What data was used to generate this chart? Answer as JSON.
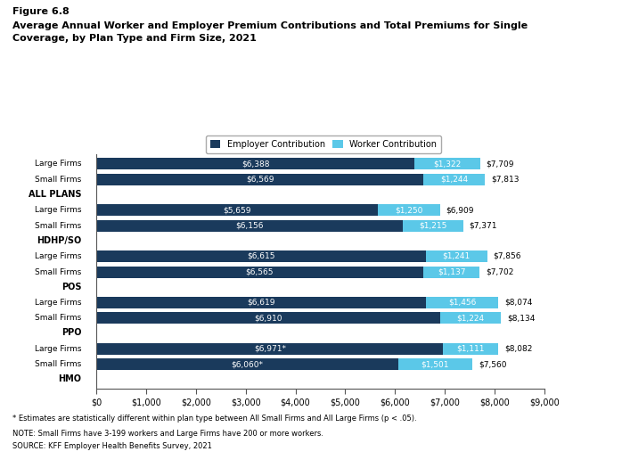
{
  "title_line1": "Figure 6.8",
  "title_line2": "Average Annual Worker and Employer Premium Contributions and Total Premiums for Single\nCoverage, by Plan Type and Firm Size, 2021",
  "employer_color": "#1a3a5c",
  "worker_color": "#5bc8e8",
  "rows": [
    {
      "label": "HMO",
      "employer": null,
      "worker": null,
      "emp_label": "",
      "wk_label": "",
      "total_label": "",
      "is_header": true
    },
    {
      "label": "Small Firms",
      "employer": 6060,
      "worker": 1501,
      "emp_label": "$6,060*",
      "wk_label": "$1,501",
      "total_label": "$7,560",
      "is_header": false
    },
    {
      "label": "Large Firms",
      "employer": 6971,
      "worker": 1111,
      "emp_label": "$6,971*",
      "wk_label": "$1,111",
      "total_label": "$8,082",
      "is_header": false
    },
    {
      "label": "PPO",
      "employer": null,
      "worker": null,
      "emp_label": "",
      "wk_label": "",
      "total_label": "",
      "is_header": true
    },
    {
      "label": "Small Firms",
      "employer": 6910,
      "worker": 1224,
      "emp_label": "$6,910",
      "wk_label": "$1,224",
      "total_label": "$8,134",
      "is_header": false
    },
    {
      "label": "Large Firms",
      "employer": 6619,
      "worker": 1456,
      "emp_label": "$6,619",
      "wk_label": "$1,456",
      "total_label": "$8,074",
      "is_header": false
    },
    {
      "label": "POS",
      "employer": null,
      "worker": null,
      "emp_label": "",
      "wk_label": "",
      "total_label": "",
      "is_header": true
    },
    {
      "label": "Small Firms",
      "employer": 6565,
      "worker": 1137,
      "emp_label": "$6,565",
      "wk_label": "$1,137",
      "total_label": "$7,702",
      "is_header": false
    },
    {
      "label": "Large Firms",
      "employer": 6615,
      "worker": 1241,
      "emp_label": "$6,615",
      "wk_label": "$1,241",
      "total_label": "$7,856",
      "is_header": false
    },
    {
      "label": "HDHP/SO",
      "employer": null,
      "worker": null,
      "emp_label": "",
      "wk_label": "",
      "total_label": "",
      "is_header": true
    },
    {
      "label": "Small Firms",
      "employer": 6156,
      "worker": 1215,
      "emp_label": "$6,156",
      "wk_label": "$1,215",
      "total_label": "$7,371",
      "is_header": false
    },
    {
      "label": "Large Firms",
      "employer": 5659,
      "worker": 1250,
      "emp_label": "$5,659",
      "wk_label": "$1,250",
      "total_label": "$6,909",
      "is_header": false
    },
    {
      "label": "ALL PLANS",
      "employer": null,
      "worker": null,
      "emp_label": "",
      "wk_label": "",
      "total_label": "",
      "is_header": true
    },
    {
      "label": "Small Firms",
      "employer": 6569,
      "worker": 1244,
      "emp_label": "$6,569",
      "wk_label": "$1,244",
      "total_label": "$7,813",
      "is_header": false
    },
    {
      "label": "Large Firms",
      "employer": 6388,
      "worker": 1322,
      "emp_label": "$6,388",
      "wk_label": "$1,322",
      "total_label": "$7,709",
      "is_header": false
    }
  ],
  "xlim": [
    0,
    9000
  ],
  "xticks": [
    0,
    1000,
    2000,
    3000,
    4000,
    5000,
    6000,
    7000,
    8000,
    9000
  ],
  "xtick_labels": [
    "$0",
    "$1,000",
    "$2,000",
    "$3,000",
    "$4,000",
    "$5,000",
    "$6,000",
    "$7,000",
    "$8,000",
    "$9,000"
  ],
  "footnote1": "* Estimates are statistically different within plan type between All Small Firms and All Large Firms (p < .05).",
  "footnote2": "NOTE: Small Firms have 3-199 workers and Large Firms have 200 or more workers.",
  "footnote3": "SOURCE: KFF Employer Health Benefits Survey, 2021"
}
